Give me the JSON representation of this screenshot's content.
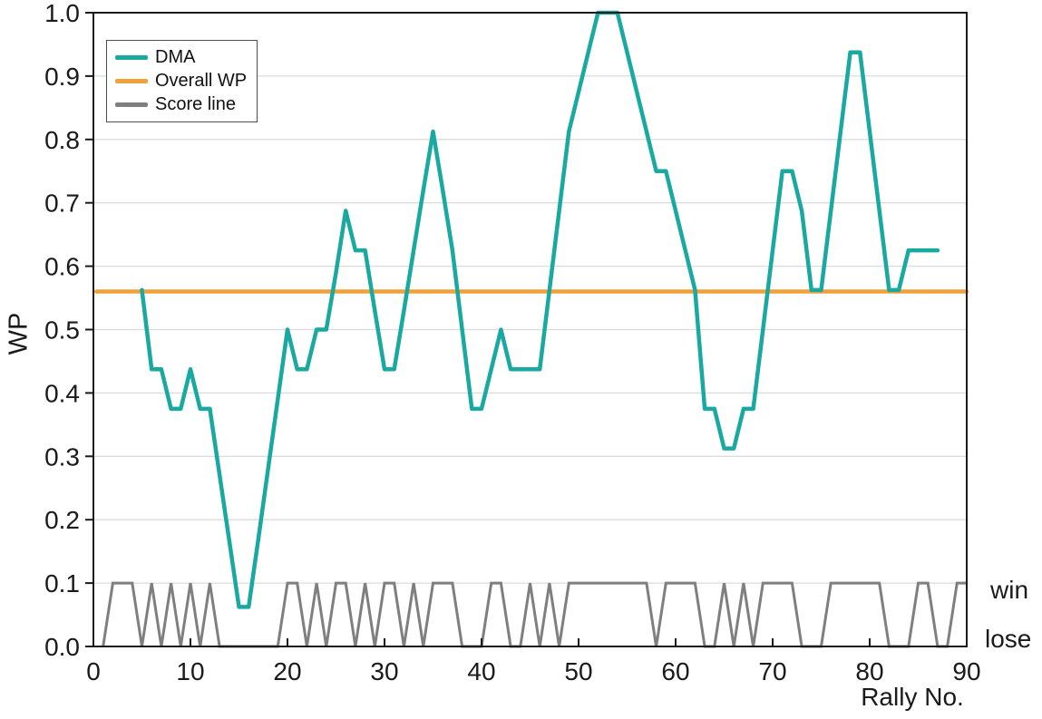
{
  "chart_data": {
    "type": "line",
    "title": "",
    "xlabel": "Rally No.",
    "ylabel": "WP",
    "xlim": [
      0,
      90
    ],
    "ylim": [
      0.0,
      1.0
    ],
    "x_ticks": [
      0,
      10,
      20,
      30,
      40,
      50,
      60,
      70,
      80,
      90
    ],
    "y_ticks": [
      "0.0",
      "0.1",
      "0.2",
      "0.3",
      "0.4",
      "0.5",
      "0.6",
      "0.7",
      "0.8",
      "0.9",
      "1.0"
    ],
    "grid": "horizontal",
    "right_labels": {
      "win": "win",
      "lose": "lose"
    },
    "colors": {
      "dma": "#1aa9a0",
      "overall_wp": "#f2a13a",
      "score": "#7f7f7f",
      "grid": "#dcdcdc",
      "axis": "#1a1a1a"
    },
    "legend": {
      "position": "top-left",
      "entries": [
        {
          "label": "DMA",
          "color": "#1aa9a0"
        },
        {
          "label": "Overall WP",
          "color": "#f2a13a"
        },
        {
          "label": "Score line",
          "color": "#7f7f7f"
        }
      ]
    },
    "series": [
      {
        "name": "DMA",
        "type": "line",
        "color": "#1aa9a0",
        "stroke_width": 4.5,
        "points": [
          [
            5,
            0.5625
          ],
          [
            6,
            0.4375
          ],
          [
            7,
            0.4375
          ],
          [
            8,
            0.375
          ],
          [
            9,
            0.375
          ],
          [
            10,
            0.4375
          ],
          [
            11,
            0.375
          ],
          [
            12,
            0.375
          ],
          [
            13,
            0.271
          ],
          [
            14,
            0.167
          ],
          [
            15,
            0.0625
          ],
          [
            16,
            0.0625
          ],
          [
            17,
            0.17
          ],
          [
            18,
            0.28
          ],
          [
            19,
            0.39
          ],
          [
            20,
            0.5
          ],
          [
            21,
            0.4375
          ],
          [
            22,
            0.4375
          ],
          [
            23,
            0.5
          ],
          [
            24,
            0.5
          ],
          [
            25,
            0.59
          ],
          [
            26,
            0.6875
          ],
          [
            27,
            0.625
          ],
          [
            28,
            0.625
          ],
          [
            29,
            0.53
          ],
          [
            30,
            0.4375
          ],
          [
            31,
            0.4375
          ],
          [
            32,
            0.53
          ],
          [
            33,
            0.625
          ],
          [
            34,
            0.72
          ],
          [
            35,
            0.8125
          ],
          [
            36,
            0.72
          ],
          [
            37,
            0.625
          ],
          [
            38,
            0.5
          ],
          [
            39,
            0.375
          ],
          [
            40,
            0.375
          ],
          [
            41,
            0.4375
          ],
          [
            42,
            0.5
          ],
          [
            43,
            0.4375
          ],
          [
            44,
            0.4375
          ],
          [
            45,
            0.4375
          ],
          [
            46,
            0.4375
          ],
          [
            47,
            0.5625
          ],
          [
            48,
            0.6875
          ],
          [
            49,
            0.8125
          ],
          [
            50,
            0.875
          ],
          [
            51,
            0.9375
          ],
          [
            52,
            1.0
          ],
          [
            53,
            1.0
          ],
          [
            54,
            1.0
          ],
          [
            55,
            0.9375
          ],
          [
            56,
            0.875
          ],
          [
            57,
            0.8125
          ],
          [
            58,
            0.75
          ],
          [
            59,
            0.75
          ],
          [
            60,
            0.6875
          ],
          [
            61,
            0.625
          ],
          [
            62,
            0.5625
          ],
          [
            63,
            0.375
          ],
          [
            64,
            0.375
          ],
          [
            65,
            0.3125
          ],
          [
            66,
            0.3125
          ],
          [
            67,
            0.375
          ],
          [
            68,
            0.375
          ],
          [
            69,
            0.5
          ],
          [
            70,
            0.625
          ],
          [
            71,
            0.75
          ],
          [
            72,
            0.75
          ],
          [
            73,
            0.6875
          ],
          [
            74,
            0.5625
          ],
          [
            75,
            0.5625
          ],
          [
            76,
            0.6875
          ],
          [
            77,
            0.8125
          ],
          [
            78,
            0.9375
          ],
          [
            79,
            0.9375
          ],
          [
            80,
            0.8125
          ],
          [
            81,
            0.6875
          ],
          [
            82,
            0.5625
          ],
          [
            83,
            0.5625
          ],
          [
            84,
            0.625
          ],
          [
            85,
            0.625
          ],
          [
            86,
            0.625
          ],
          [
            87,
            0.625
          ]
        ]
      },
      {
        "name": "Overall WP",
        "type": "hline",
        "color": "#f2a13a",
        "stroke_width": 4.5,
        "value": 0.56,
        "x_start": 0.3,
        "x_end": 90
      },
      {
        "name": "Score line",
        "type": "binary-line",
        "color": "#7f7f7f",
        "stroke_width": 3,
        "start_rally": 1,
        "win_value": 0.1,
        "lose_value": 0.0,
        "results": "LWWWLWLWLWLWLLLLLLLWWLWLWWLWLWWLWLWWWLLLWWLLWLWLWWWWWWWWWLWWWWLLWLWLWWWWLLLWWWWWWLLLWWLLWW"
      }
    ]
  }
}
